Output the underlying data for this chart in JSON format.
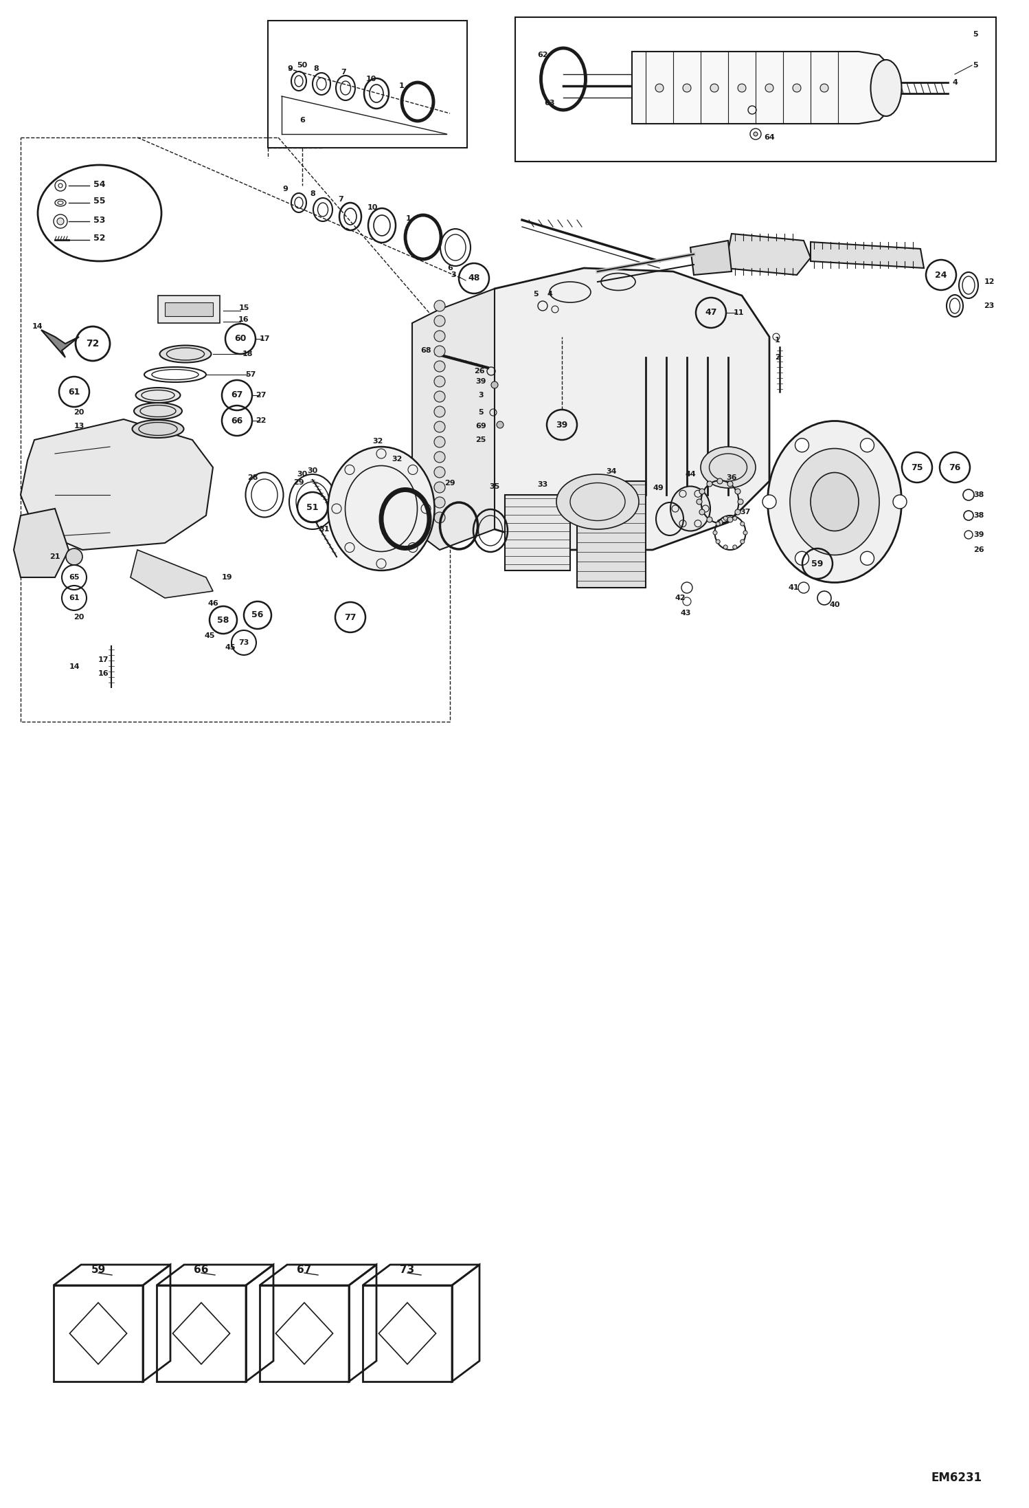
{
  "bg_color": "#ffffff",
  "line_color": "#1a1a1a",
  "figure_width": 14.98,
  "figure_height": 21.94,
  "dpi": 100,
  "watermark": "EM6231"
}
